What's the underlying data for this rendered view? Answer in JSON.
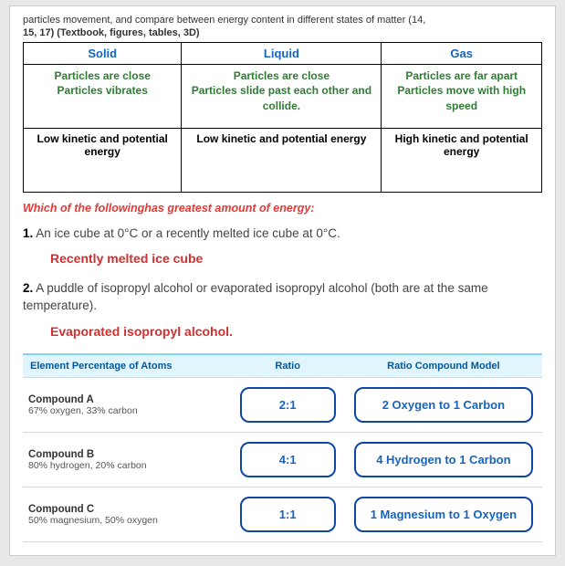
{
  "intro": {
    "line1": "particles movement, and compare between energy content in different states of matter (14,",
    "line2": "15, 17) (Textbook, figures, tables, 3D)"
  },
  "states_table": {
    "headers": [
      "Solid",
      "Liquid",
      "Gas"
    ],
    "row1": [
      "Particles are close\nParticles vibrates",
      "Particles are close\nParticles slide past each other and collide.",
      "Particles are far apart\nParticles move with high speed"
    ],
    "row2": [
      "Low kinetic and potential energy",
      "Low kinetic and potential energy",
      "High kinetic and potential energy"
    ]
  },
  "prompt": "Which of the followinghas greatest amount of energy:",
  "q1": {
    "num": "1.",
    "text": "An ice cube at 0°C or a recently melted ice cube at 0°C.",
    "answer": "Recently melted ice cube"
  },
  "q2": {
    "num": "2.",
    "text": "A puddle of isopropyl alcohol or evaporated isopropyl alcohol (both are at the same temperature).",
    "answer": "Evaporated isopropyl alcohol."
  },
  "ctable": {
    "headers": [
      "Element Percentage of Atoms",
      "Ratio",
      "Ratio Compound Model"
    ],
    "rows": [
      {
        "name": "Compound A",
        "desc": "67% oxygen, 33% carbon",
        "ratio": "2:1",
        "model": "2 Oxygen to 1 Carbon"
      },
      {
        "name": "Compound B",
        "desc": "80% hydrogen, 20% carbon",
        "ratio": "4:1",
        "model": "4 Hydrogen to 1 Carbon"
      },
      {
        "name": "Compound C",
        "desc": "50% magnesium, 50% oxygen",
        "ratio": "1:1",
        "model": "1 Magnesium to 1 Oxygen"
      }
    ]
  }
}
